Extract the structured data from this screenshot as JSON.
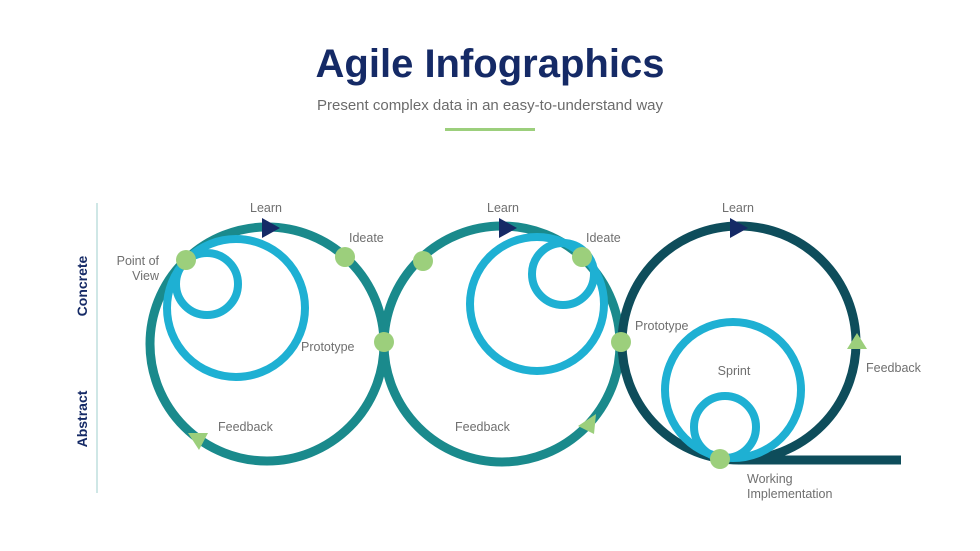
{
  "header": {
    "title": "Agile Infographics",
    "subtitle": "Present complex data in an easy-to-understand way"
  },
  "axis": {
    "top": "Concrete",
    "bottom": "Abstract"
  },
  "loops": [
    {
      "learn": "Learn",
      "ideate": "Ideate",
      "point_of_view_1": "Point of",
      "point_of_view_2": "View",
      "prototype": "Prototype",
      "feedback": "Feedback"
    },
    {
      "learn": "Learn",
      "ideate": "Ideate",
      "feedback": "Feedback"
    },
    {
      "learn": "Learn",
      "prototype": "Prototype",
      "sprint": "Sprint",
      "feedback": "Feedback",
      "working_1": "Working",
      "working_2": "Implementation"
    }
  ],
  "colors": {
    "title": "#152a66",
    "ring_teal": "#1a8a8c",
    "ring_dark": "#0e4d5b",
    "inner_blue": "#1eb0d3",
    "node_green": "#9ccf7c",
    "arrow_navy": "#152a66"
  }
}
